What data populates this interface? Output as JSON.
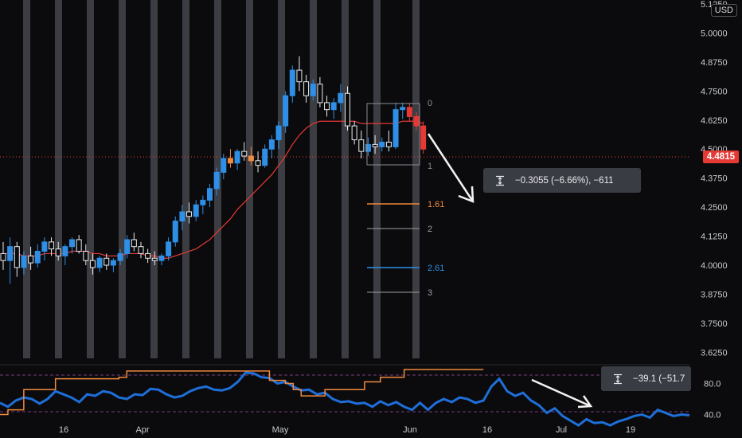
{
  "currency": "USD",
  "last_price": "4.4815",
  "price_axis": {
    "ticks": [
      "5.1250",
      "5.0000",
      "4.8750",
      "4.7500",
      "4.6250",
      "4.5000",
      "4.3750",
      "4.2500",
      "4.1250",
      "4.0000",
      "3.8750",
      "3.7500",
      "3.6250"
    ],
    "range": [
      3.6125,
      5.125
    ]
  },
  "time_axis": {
    "ticks": [
      "16",
      "Apr",
      "May",
      "Jun",
      "16",
      "Jul",
      "19"
    ]
  },
  "fib_levels": [
    {
      "label": "0",
      "color": "#8a8d92"
    },
    {
      "label": "1",
      "color": "#8a8d92"
    },
    {
      "label": "1.61",
      "color": "#f08a3e"
    },
    {
      "label": "2",
      "color": "#9c9fa4"
    },
    {
      "label": "2.61",
      "color": "#2f8fe6"
    },
    {
      "label": "3",
      "color": "#9c9fa4"
    }
  ],
  "measure_price": {
    "text": "−0.3055 (−6.66%), −611"
  },
  "measure_osc": {
    "text": "−39.1 (−51.7"
  },
  "oscillator_axis": {
    "ticks": [
      "80.0",
      "40.0"
    ],
    "range": [
      20,
      100
    ]
  },
  "colors": {
    "background": "#0b0b0d",
    "up_candle": "#2f8fe6",
    "down_candle": "#e8eaed",
    "red_candle": "#e53935",
    "orange": "#f08a3e",
    "ma_line": "#e53935",
    "osc_line": "#1e6fd9",
    "highlight_bar": "#3c3d42"
  },
  "chart_data": {
    "type": "candlestick",
    "price_series": {
      "name": "",
      "ohlc": [
        [
          4.05,
          4.1,
          3.98,
          4.02
        ],
        [
          4.02,
          4.12,
          3.92,
          4.08
        ],
        [
          4.08,
          4.1,
          3.95,
          3.99
        ],
        [
          3.99,
          4.06,
          3.96,
          4.04
        ],
        [
          4.04,
          4.08,
          3.98,
          4.01
        ],
        [
          4.01,
          4.09,
          3.99,
          4.06
        ],
        [
          4.06,
          4.12,
          4.02,
          4.1
        ],
        [
          4.1,
          4.12,
          4.04,
          4.07
        ],
        [
          4.07,
          4.1,
          4.02,
          4.04
        ],
        [
          4.04,
          4.09,
          4.0,
          4.08
        ],
        [
          4.08,
          4.12,
          4.05,
          4.11
        ],
        [
          4.11,
          4.13,
          4.05,
          4.06
        ],
        [
          4.06,
          4.09,
          4.0,
          4.02
        ],
        [
          4.02,
          4.05,
          3.96,
          3.99
        ],
        [
          3.99,
          4.04,
          3.97,
          4.03
        ],
        [
          4.03,
          4.05,
          3.98,
          4.0
        ],
        [
          4.0,
          4.03,
          3.97,
          4.02
        ],
        [
          4.02,
          4.07,
          4.0,
          4.05
        ],
        [
          4.05,
          4.13,
          4.03,
          4.11
        ],
        [
          4.11,
          4.14,
          4.06,
          4.08
        ],
        [
          4.08,
          4.1,
          4.03,
          4.05
        ],
        [
          4.05,
          4.07,
          4.01,
          4.03
        ],
        [
          4.03,
          4.06,
          4.0,
          4.02
        ],
        [
          4.02,
          4.05,
          4.0,
          4.04
        ],
        [
          4.04,
          4.12,
          4.02,
          4.1
        ],
        [
          4.1,
          4.21,
          4.08,
          4.19
        ],
        [
          4.19,
          4.26,
          4.15,
          4.23
        ],
        [
          4.23,
          4.27,
          4.18,
          4.21
        ],
        [
          4.21,
          4.28,
          4.19,
          4.26
        ],
        [
          4.26,
          4.3,
          4.22,
          4.28
        ],
        [
          4.28,
          4.35,
          4.25,
          4.33
        ],
        [
          4.33,
          4.42,
          4.3,
          4.4
        ],
        [
          4.4,
          4.48,
          4.37,
          4.46
        ],
        [
          4.46,
          4.5,
          4.42,
          4.44
        ],
        [
          4.44,
          4.5,
          4.41,
          4.49
        ],
        [
          4.49,
          4.53,
          4.45,
          4.47
        ],
        [
          4.47,
          4.51,
          4.43,
          4.45
        ],
        [
          4.45,
          4.49,
          4.4,
          4.43
        ],
        [
          4.43,
          4.52,
          4.42,
          4.5
        ],
        [
          4.5,
          4.56,
          4.46,
          4.54
        ],
        [
          4.54,
          4.62,
          4.5,
          4.6
        ],
        [
          4.6,
          4.75,
          4.57,
          4.73
        ],
        [
          4.73,
          4.86,
          4.7,
          4.84
        ],
        [
          4.84,
          4.9,
          4.75,
          4.79
        ],
        [
          4.79,
          4.82,
          4.7,
          4.73
        ],
        [
          4.73,
          4.8,
          4.71,
          4.78
        ],
        [
          4.78,
          4.81,
          4.68,
          4.7
        ],
        [
          4.7,
          4.73,
          4.64,
          4.67
        ],
        [
          4.67,
          4.72,
          4.63,
          4.7
        ],
        [
          4.7,
          4.78,
          4.66,
          4.74
        ],
        [
          4.74,
          4.77,
          4.58,
          4.6
        ],
        [
          4.6,
          4.62,
          4.52,
          4.54
        ],
        [
          4.54,
          4.58,
          4.46,
          4.49
        ],
        [
          4.49,
          4.55,
          4.47,
          4.52
        ],
        [
          4.52,
          4.56,
          4.48,
          4.51
        ],
        [
          4.51,
          4.55,
          4.49,
          4.53
        ],
        [
          4.53,
          4.58,
          4.49,
          4.51
        ],
        [
          4.51,
          4.7,
          4.5,
          4.67
        ],
        [
          4.67,
          4.7,
          4.63,
          4.68
        ],
        [
          4.68,
          4.7,
          4.62,
          4.64
        ],
        [
          4.64,
          4.66,
          4.58,
          4.6
        ],
        [
          4.6,
          4.62,
          4.48,
          4.5
        ]
      ],
      "ma": [
        4.05,
        4.05,
        4.05,
        4.04,
        4.04,
        4.04,
        4.05,
        4.05,
        4.05,
        4.05,
        4.06,
        4.06,
        4.06,
        4.05,
        4.05,
        4.04,
        4.04,
        4.04,
        4.05,
        4.05,
        4.05,
        4.04,
        4.04,
        4.03,
        4.03,
        4.04,
        4.05,
        4.06,
        4.07,
        4.09,
        4.11,
        4.14,
        4.17,
        4.2,
        4.24,
        4.27,
        4.3,
        4.33,
        4.36,
        4.39,
        4.43,
        4.47,
        4.52,
        4.56,
        4.59,
        4.61,
        4.62,
        4.62,
        4.62,
        4.62,
        4.62,
        4.62,
        4.61,
        4.61,
        4.61,
        4.61,
        4.61,
        4.61,
        4.62,
        4.62,
        4.62,
        4.61
      ]
    },
    "oscillator": {
      "name": "",
      "x": [
        0,
        1,
        2,
        3,
        4,
        5,
        6,
        7,
        8,
        9,
        10,
        11,
        12,
        13,
        14,
        15,
        16,
        17,
        18,
        19,
        20,
        21,
        22,
        23,
        24,
        25,
        26,
        27,
        28,
        29,
        30,
        31,
        32,
        33,
        34,
        35,
        36,
        37,
        38,
        39,
        40,
        41,
        42,
        43,
        44,
        45,
        46,
        47,
        48,
        49,
        50,
        51,
        52,
        53,
        54,
        55,
        56,
        57,
        58,
        59,
        60,
        61,
        62,
        63,
        64,
        65,
        66,
        67,
        68,
        69,
        70,
        71,
        72,
        73,
        74,
        75,
        76,
        77,
        78,
        79,
        80,
        81,
        82,
        83,
        84,
        85,
        86,
        87
      ],
      "values": [
        55,
        50,
        58,
        62,
        60,
        54,
        60,
        70,
        66,
        62,
        56,
        66,
        64,
        70,
        68,
        62,
        60,
        66,
        65,
        73,
        72,
        66,
        62,
        64,
        70,
        74,
        76,
        72,
        71,
        74,
        82,
        94,
        93,
        88,
        87,
        80,
        82,
        76,
        71,
        72,
        66,
        68,
        60,
        56,
        57,
        54,
        55,
        50,
        57,
        52,
        56,
        50,
        46,
        55,
        46,
        55,
        60,
        56,
        62,
        60,
        55,
        58,
        76,
        86,
        70,
        64,
        68,
        58,
        52,
        42,
        48,
        38,
        32,
        26,
        34,
        29,
        30,
        26,
        31,
        34,
        38,
        40,
        36,
        46,
        42,
        38,
        40,
        39
      ],
      "orange_values": [
        40,
        46,
        46,
        72,
        72,
        72,
        72,
        86,
        86,
        86,
        86,
        86,
        86,
        86,
        86,
        88,
        96,
        96,
        96,
        96,
        96,
        96,
        96,
        96,
        96,
        96,
        96,
        96,
        96,
        96,
        96,
        96,
        96,
        96,
        84,
        84,
        80,
        72,
        64,
        64,
        64,
        72,
        72,
        72,
        72,
        72,
        82,
        82,
        88,
        88,
        88,
        98,
        98,
        98,
        98,
        98,
        98,
        98,
        98,
        98,
        98,
        98
      ]
    }
  }
}
